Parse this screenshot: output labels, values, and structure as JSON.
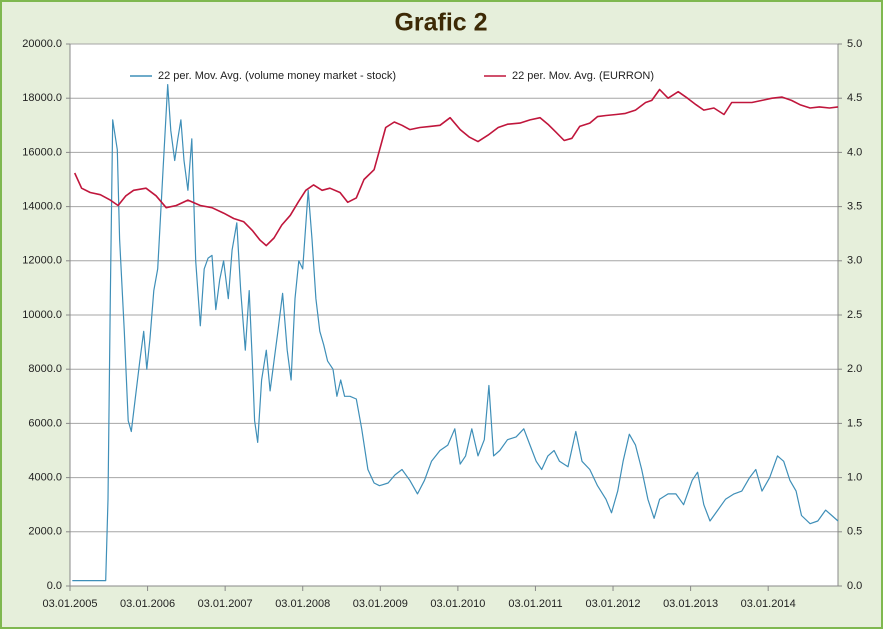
{
  "chart_data": {
    "type": "line",
    "title": "Grafic 2",
    "xlim": [
      2005,
      2014.9
    ],
    "xticks": [
      {
        "value": 2005,
        "label": "03.01.2005"
      },
      {
        "value": 2006,
        "label": "03.01.2006"
      },
      {
        "value": 2007,
        "label": "03.01.2007"
      },
      {
        "value": 2008,
        "label": "03.01.2008"
      },
      {
        "value": 2009,
        "label": "03.01.2009"
      },
      {
        "value": 2010,
        "label": "03.01.2010"
      },
      {
        "value": 2011,
        "label": "03.01.2011"
      },
      {
        "value": 2012,
        "label": "03.01.2012"
      },
      {
        "value": 2013,
        "label": "03.01.2013"
      },
      {
        "value": 2014,
        "label": "03.01.2014"
      }
    ],
    "ylim": [
      0,
      20000
    ],
    "yticks": [
      {
        "value": 0,
        "label": "0.0"
      },
      {
        "value": 2000,
        "label": "2000.0"
      },
      {
        "value": 4000,
        "label": "4000.0"
      },
      {
        "value": 6000,
        "label": "6000.0"
      },
      {
        "value": 8000,
        "label": "8000.0"
      },
      {
        "value": 10000,
        "label": "10000.0"
      },
      {
        "value": 12000,
        "label": "12000.0"
      },
      {
        "value": 14000,
        "label": "14000.0"
      },
      {
        "value": 16000,
        "label": "16000.0"
      },
      {
        "value": 18000,
        "label": "18000.0"
      },
      {
        "value": 20000,
        "label": "20000.0"
      }
    ],
    "y2lim": [
      0,
      5
    ],
    "y2ticks": [
      {
        "value": 0,
        "label": "0.0"
      },
      0.5,
      {
        "value": 1,
        "label": "1.0"
      },
      1.5,
      {
        "value": 2,
        "label": "2.0"
      },
      2.5,
      {
        "value": 3,
        "label": "3.0"
      },
      3.5,
      {
        "value": 4,
        "label": "4.0"
      },
      4.5,
      {
        "value": 5,
        "label": "5.0"
      }
    ],
    "grid": true,
    "series": [
      {
        "name": "22 per. Mov. Avg. (volume money market - stock)",
        "color": "#3f8fb8",
        "axis": "y",
        "x": [
          2005.03,
          2005.26,
          2005.46,
          2005.49,
          2005.52,
          2005.55,
          2005.61,
          2005.64,
          2005.7,
          2005.75,
          2005.79,
          2005.84,
          2005.9,
          2005.95,
          2005.99,
          2006.03,
          2006.08,
          2006.13,
          2006.2,
          2006.26,
          2006.3,
          2006.35,
          2006.39,
          2006.43,
          2006.47,
          2006.52,
          2006.57,
          2006.62,
          2006.68,
          2006.73,
          2006.78,
          2006.83,
          2006.88,
          2006.93,
          2006.98,
          2007.04,
          2007.09,
          2007.15,
          2007.2,
          2007.26,
          2007.31,
          2007.35,
          2007.38,
          2007.42,
          2007.47,
          2007.53,
          2007.58,
          2007.63,
          2007.68,
          2007.74,
          2007.8,
          2007.85,
          2007.9,
          2007.95,
          2008.0,
          2008.07,
          2008.12,
          2008.17,
          2008.22,
          2008.27,
          2008.32,
          2008.39,
          2008.44,
          2008.49,
          2008.54,
          2008.61,
          2008.69,
          2008.76,
          2008.84,
          2008.92,
          2008.99,
          2009.1,
          2009.19,
          2009.28,
          2009.38,
          2009.48,
          2009.57,
          2009.66,
          2009.77,
          2009.87,
          2009.96,
          2010.03,
          2010.1,
          2010.18,
          2010.26,
          2010.34,
          2010.4,
          2010.46,
          2010.54,
          2010.64,
          2010.75,
          2010.85,
          2010.93,
          2011.01,
          2011.08,
          2011.16,
          2011.24,
          2011.31,
          2011.42,
          2011.52,
          2011.6,
          2011.7,
          2011.8,
          2011.91,
          2011.98,
          2012.06,
          2012.13,
          2012.21,
          2012.29,
          2012.37,
          2012.45,
          2012.53,
          2012.6,
          2012.71,
          2012.81,
          2012.91,
          2013.02,
          2013.09,
          2013.17,
          2013.25,
          2013.35,
          2013.45,
          2013.56,
          2013.66,
          2013.76,
          2013.84,
          2013.92,
          2014.02,
          2014.12,
          2014.2,
          2014.28,
          2014.36,
          2014.43,
          2014.54,
          2014.64,
          2014.74,
          2014.82,
          2014.9
        ],
        "values": [
          200,
          200,
          200,
          3200,
          10600,
          17200,
          16100,
          12800,
          9400,
          6100,
          5700,
          6900,
          8300,
          9400,
          8000,
          9100,
          10900,
          11700,
          15400,
          18500,
          16800,
          15700,
          16500,
          17200,
          15700,
          14600,
          16500,
          12000,
          9600,
          11700,
          12100,
          12200,
          10200,
          11300,
          12000,
          10600,
          12400,
          13400,
          10900,
          8700,
          10900,
          8300,
          6100,
          5300,
          7600,
          8700,
          7200,
          8300,
          9400,
          10800,
          8700,
          7600,
          10600,
          12000,
          11700,
          14600,
          12800,
          10600,
          9400,
          8900,
          8300,
          8000,
          7000,
          7600,
          7000,
          7000,
          6900,
          5800,
          4300,
          3800,
          3700,
          3800,
          4100,
          4300,
          3900,
          3400,
          3900,
          4600,
          5000,
          5200,
          5800,
          4500,
          4800,
          5800,
          4800,
          5400,
          7400,
          4800,
          5000,
          5400,
          5500,
          5800,
          5200,
          4600,
          4300,
          4800,
          5000,
          4600,
          4400,
          5700,
          4600,
          4300,
          3700,
          3200,
          2700,
          3500,
          4600,
          5600,
          5200,
          4300,
          3200,
          2500,
          3200,
          3400,
          3400,
          3000,
          3900,
          4200,
          3000,
          2400,
          2800,
          3200,
          3400,
          3500,
          4000,
          4300,
          3500,
          4000,
          4800,
          4600,
          3900,
          3500,
          2600,
          2300,
          2400,
          2800,
          2600,
          2400
        ]
      },
      {
        "name": "22 per. Mov. Avg. (EURRON)",
        "color": "#c0163c",
        "axis": "y2",
        "x": [
          2005.06,
          2005.15,
          2005.26,
          2005.39,
          2005.52,
          2005.62,
          2005.72,
          2005.82,
          2005.98,
          2006.11,
          2006.24,
          2006.37,
          2006.52,
          2006.68,
          2006.83,
          2006.98,
          2007.11,
          2007.24,
          2007.35,
          2007.45,
          2007.53,
          2007.63,
          2007.73,
          2007.84,
          2007.94,
          2008.04,
          2008.14,
          2008.25,
          2008.35,
          2008.48,
          2008.58,
          2008.69,
          2008.79,
          2008.92,
          2008.99,
          2009.07,
          2009.18,
          2009.28,
          2009.38,
          2009.51,
          2009.64,
          2009.77,
          2009.9,
          2010.03,
          2010.15,
          2010.26,
          2010.39,
          2010.52,
          2010.64,
          2010.8,
          2010.93,
          2011.06,
          2011.16,
          2011.26,
          2011.37,
          2011.47,
          2011.57,
          2011.7,
          2011.8,
          2011.91,
          2012.04,
          2012.16,
          2012.29,
          2012.42,
          2012.5,
          2012.6,
          2012.71,
          2012.84,
          2012.96,
          2013.07,
          2013.17,
          2013.3,
          2013.43,
          2013.53,
          2013.66,
          2013.79,
          2013.92,
          2014.05,
          2014.18,
          2014.3,
          2014.41,
          2014.54,
          2014.66,
          2014.79,
          2014.9
        ],
        "values": [
          3.81,
          3.67,
          3.63,
          3.61,
          3.56,
          3.51,
          3.6,
          3.65,
          3.67,
          3.6,
          3.49,
          3.51,
          3.56,
          3.51,
          3.49,
          3.44,
          3.39,
          3.36,
          3.28,
          3.19,
          3.14,
          3.21,
          3.33,
          3.42,
          3.54,
          3.65,
          3.7,
          3.65,
          3.67,
          3.63,
          3.54,
          3.58,
          3.75,
          3.84,
          4.02,
          4.23,
          4.28,
          4.25,
          4.21,
          4.23,
          4.24,
          4.25,
          4.32,
          4.21,
          4.14,
          4.1,
          4.16,
          4.23,
          4.26,
          4.27,
          4.3,
          4.32,
          4.26,
          4.19,
          4.11,
          4.13,
          4.24,
          4.27,
          4.33,
          4.34,
          4.35,
          4.36,
          4.39,
          4.46,
          4.48,
          4.58,
          4.5,
          4.56,
          4.5,
          4.44,
          4.39,
          4.41,
          4.35,
          4.46,
          4.46,
          4.46,
          4.48,
          4.5,
          4.51,
          4.48,
          4.44,
          4.41,
          4.42,
          4.41,
          4.42
        ]
      }
    ]
  }
}
